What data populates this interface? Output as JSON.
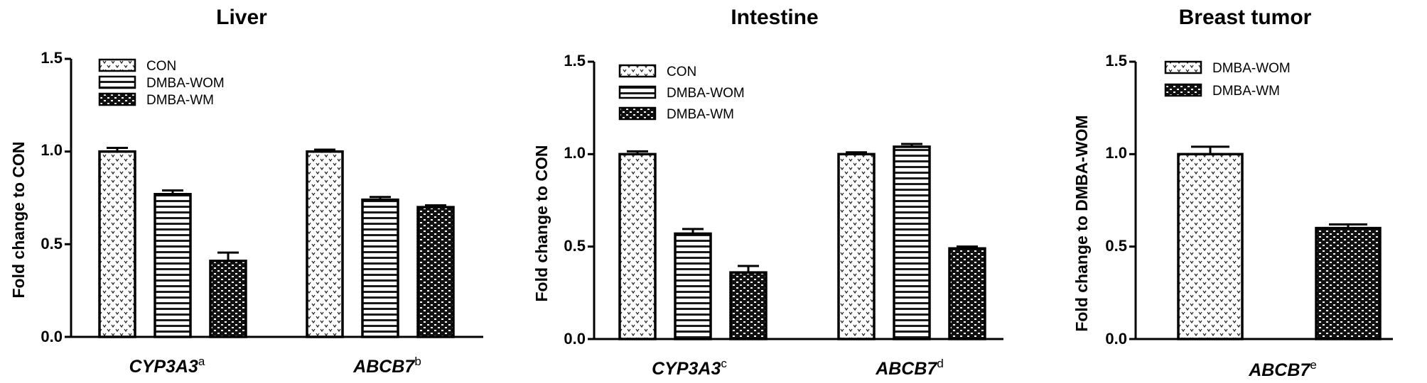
{
  "chart_data": [
    {
      "type": "bar",
      "title": "Liver",
      "ylabel": "Fold change to CON",
      "ylim": [
        0,
        1.5
      ],
      "yticks": [
        "0.0",
        "0.5",
        "1.0",
        "1.5"
      ],
      "categories": [
        {
          "name": "CYP3A3",
          "sup": "a"
        },
        {
          "name": "ABCB7",
          "sup": "b"
        }
      ],
      "series": [
        {
          "name": "CON",
          "pattern": "dots",
          "values": [
            1.0,
            1.0
          ],
          "errors": [
            0.02,
            0.01
          ]
        },
        {
          "name": "DMBA-WOM",
          "pattern": "hlines",
          "values": [
            0.77,
            0.74
          ],
          "errors": [
            0.02,
            0.015
          ]
        },
        {
          "name": "DMBA-WM",
          "pattern": "bricks",
          "values": [
            0.41,
            0.7
          ],
          "errors": [
            0.045,
            0.01
          ]
        }
      ],
      "legend": "top-left",
      "grid": false
    },
    {
      "type": "bar",
      "title": "Intestine",
      "ylabel": "Fold change to CON",
      "ylim": [
        0,
        1.5
      ],
      "yticks": [
        "0.0",
        "0.5",
        "1.0",
        "1.5"
      ],
      "categories": [
        {
          "name": "CYP3A3",
          "sup": "c"
        },
        {
          "name": "ABCB7",
          "sup": "d"
        }
      ],
      "series": [
        {
          "name": "CON",
          "pattern": "dots",
          "values": [
            1.0,
            1.0
          ],
          "errors": [
            0.015,
            0.01
          ]
        },
        {
          "name": "DMBA-WOM",
          "pattern": "hlines",
          "values": [
            0.57,
            1.04
          ],
          "errors": [
            0.025,
            0.015
          ]
        },
        {
          "name": "DMBA-WM",
          "pattern": "bricks",
          "values": [
            0.36,
            0.49
          ],
          "errors": [
            0.035,
            0.01
          ]
        }
      ],
      "legend": "top-left",
      "grid": false
    },
    {
      "type": "bar",
      "title": "Breast tumor",
      "ylabel": "Fold change to DMBA-WOM",
      "ylim": [
        0,
        1.5
      ],
      "yticks": [
        "0.0",
        "0.5",
        "1.0",
        "1.5"
      ],
      "categories": [
        {
          "name": "ABCB7",
          "sup": "e"
        }
      ],
      "series": [
        {
          "name": "DMBA-WOM",
          "pattern": "dots",
          "values": [
            1.0
          ],
          "errors": [
            0.04
          ]
        },
        {
          "name": "DMBA-WM",
          "pattern": "bricks",
          "values": [
            0.6
          ],
          "errors": [
            0.02
          ]
        }
      ],
      "legend": "top-left",
      "grid": false
    }
  ]
}
